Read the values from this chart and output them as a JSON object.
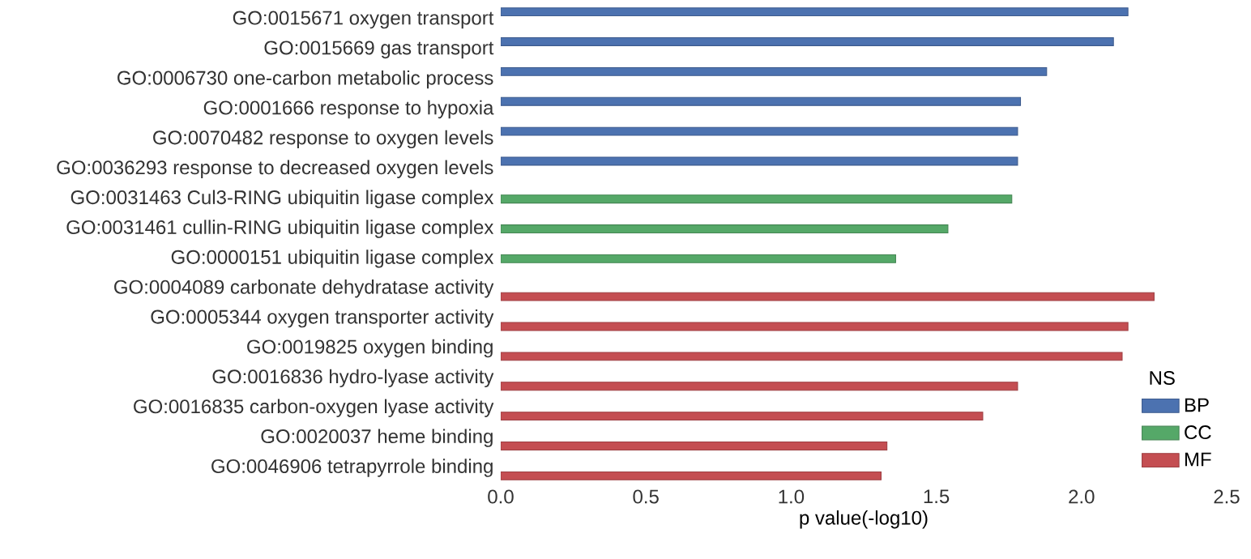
{
  "chart_data": {
    "type": "bar",
    "orientation": "horizontal",
    "xlabel": "p value(-log10)",
    "legend_title": "NS",
    "legend": "bottom right",
    "grid": false,
    "categories": [
      "GO:0015671 oxygen transport",
      "GO:0015669 gas transport",
      "GO:0006730 one-carbon metabolic process",
      "GO:0001666 response to hypoxia",
      "GO:0070482 response to oxygen levels",
      "GO:0036293 response to decreased oxygen levels",
      "GO:0031463 Cul3-RING ubiquitin ligase complex",
      "GO:0031461 cullin-RING ubiquitin ligase complex",
      "GO:0000151 ubiquitin ligase complex",
      "GO:0004089 carbonate dehydratase activity",
      "GO:0005344 oxygen transporter activity",
      "GO:0019825 oxygen binding",
      "GO:0016836 hydro-lyase activity",
      "GO:0016835 carbon-oxygen lyase activity",
      "GO:0020037 heme binding",
      "GO:0046906 tetrapyrrole binding"
    ],
    "series": [
      {
        "name": "BP",
        "color": "#4c72b0",
        "values": [
          2.16,
          2.11,
          1.88,
          1.79,
          1.78,
          1.78,
          null,
          null,
          null,
          null,
          null,
          null,
          null,
          null,
          null,
          null
        ]
      },
      {
        "name": "CC",
        "color": "#55a868",
        "values": [
          null,
          null,
          null,
          null,
          null,
          null,
          1.76,
          1.54,
          1.36,
          null,
          null,
          null,
          null,
          null,
          null,
          null
        ]
      },
      {
        "name": "MF",
        "color": "#c44e52",
        "values": [
          null,
          null,
          null,
          null,
          null,
          null,
          null,
          null,
          null,
          2.25,
          2.16,
          2.14,
          1.78,
          1.66,
          1.33,
          1.31
        ]
      }
    ],
    "xlim": [
      0,
      2.5
    ],
    "xticks": [
      {
        "value": 0,
        "label": "0.0"
      },
      0.5,
      {
        "value": 1,
        "label": "1.0"
      },
      1.5,
      {
        "value": 2,
        "label": "2.0"
      },
      2.5
    ]
  }
}
